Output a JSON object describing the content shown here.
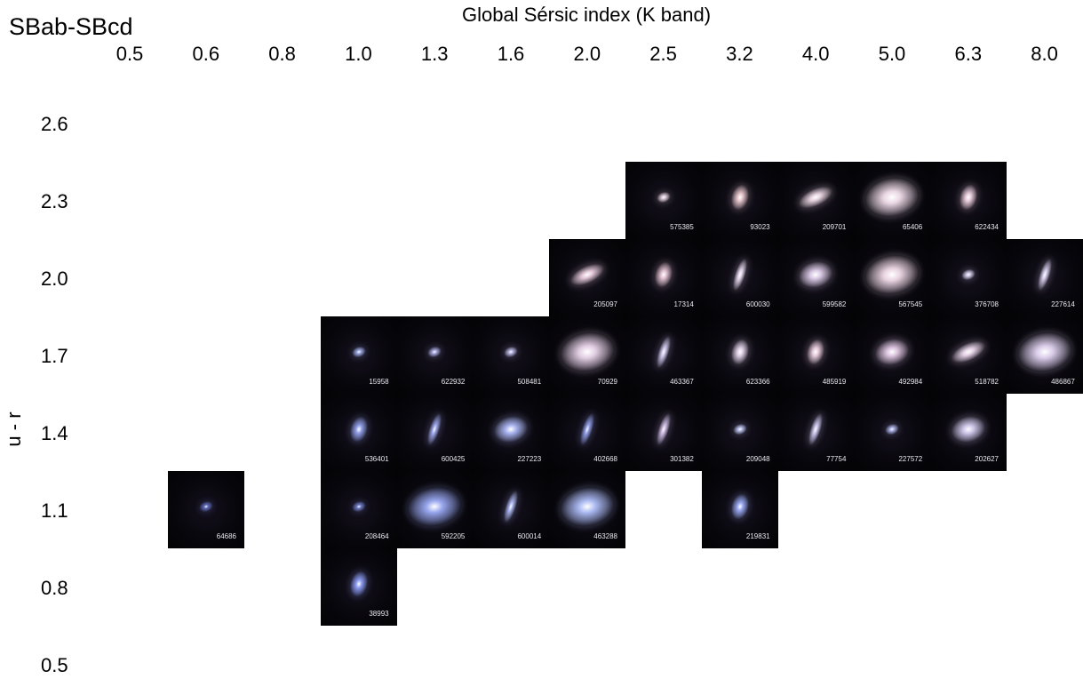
{
  "corner_title": "SBab-SBcd",
  "x_axis": {
    "title": "Global Sérsic index (K band)",
    "ticks": [
      "0.5",
      "0.6",
      "0.8",
      "1.0",
      "1.3",
      "1.6",
      "2.0",
      "2.5",
      "3.2",
      "4.0",
      "5.0",
      "6.3",
      "8.0"
    ]
  },
  "y_axis": {
    "title": "u - r",
    "ticks": [
      "2.6",
      "2.3",
      "2.0",
      "1.7",
      "1.4",
      "1.1",
      "0.8",
      "0.5"
    ]
  },
  "colors": {
    "background": "#ffffff",
    "cell_background": "#050508",
    "label_text": "#e8e8ef"
  },
  "galaxies": [
    {
      "id": "575385",
      "col": 7,
      "row": 1,
      "hue": "#d9c9d6",
      "shape": "compact"
    },
    {
      "id": "93023",
      "col": 8,
      "row": 1,
      "hue": "#e2c2c8",
      "shape": "oval"
    },
    {
      "id": "209701",
      "col": 9,
      "row": 1,
      "hue": "#e3d0dc",
      "shape": "tilted"
    },
    {
      "id": "65406",
      "col": 10,
      "row": 1,
      "hue": "#e9d6e3",
      "shape": "large"
    },
    {
      "id": "622434",
      "col": 11,
      "row": 1,
      "hue": "#e6c9d8",
      "shape": "oval"
    },
    {
      "id": "205097",
      "col": 6,
      "row": 2,
      "hue": "#e3c8d8",
      "shape": "tilted"
    },
    {
      "id": "17314",
      "col": 7,
      "row": 2,
      "hue": "#e0c0cf",
      "shape": "oval"
    },
    {
      "id": "600030",
      "col": 8,
      "row": 2,
      "hue": "#ddd0e6",
      "shape": "edge"
    },
    {
      "id": "599582",
      "col": 9,
      "row": 2,
      "hue": "#d9c8e4",
      "shape": "spiral"
    },
    {
      "id": "567545",
      "col": 10,
      "row": 2,
      "hue": "#e8d2e0",
      "shape": "large"
    },
    {
      "id": "376708",
      "col": 11,
      "row": 2,
      "hue": "#d0c8e6",
      "shape": "compact"
    },
    {
      "id": "227614",
      "col": 12,
      "row": 2,
      "hue": "#cfc5e4",
      "shape": "edge"
    },
    {
      "id": "15958",
      "col": 3,
      "row": 3,
      "hue": "#9aa6e0",
      "shape": "compact"
    },
    {
      "id": "622932",
      "col": 4,
      "row": 3,
      "hue": "#a5a7dc",
      "shape": "compact"
    },
    {
      "id": "508481",
      "col": 5,
      "row": 3,
      "hue": "#b3b0de",
      "shape": "compact"
    },
    {
      "id": "70929",
      "col": 6,
      "row": 3,
      "hue": "#e1cde2",
      "shape": "large"
    },
    {
      "id": "463367",
      "col": 7,
      "row": 3,
      "hue": "#c9c2e6",
      "shape": "edge"
    },
    {
      "id": "623366",
      "col": 8,
      "row": 3,
      "hue": "#dccde3",
      "shape": "oval"
    },
    {
      "id": "485919",
      "col": 9,
      "row": 3,
      "hue": "#e6cbdb",
      "shape": "oval"
    },
    {
      "id": "492984",
      "col": 10,
      "row": 3,
      "hue": "#dcc3de",
      "shape": "spiral"
    },
    {
      "id": "518782",
      "col": 11,
      "row": 3,
      "hue": "#e3d0e4",
      "shape": "tilted"
    },
    {
      "id": "486867",
      "col": 12,
      "row": 3,
      "hue": "#d8cbe8",
      "shape": "large"
    },
    {
      "id": "536401",
      "col": 3,
      "row": 4,
      "hue": "#8f9ee6",
      "shape": "oval"
    },
    {
      "id": "600425",
      "col": 4,
      "row": 4,
      "hue": "#9aa3e4",
      "shape": "edge"
    },
    {
      "id": "227223",
      "col": 5,
      "row": 4,
      "hue": "#a7b2ee",
      "shape": "spiral"
    },
    {
      "id": "402668",
      "col": 6,
      "row": 4,
      "hue": "#8e9ae0",
      "shape": "edge"
    },
    {
      "id": "301382",
      "col": 7,
      "row": 4,
      "hue": "#c7b6dc",
      "shape": "edge"
    },
    {
      "id": "209048",
      "col": 8,
      "row": 4,
      "hue": "#b6bde6",
      "shape": "compact"
    },
    {
      "id": "77754",
      "col": 9,
      "row": 4,
      "hue": "#c5bfe6",
      "shape": "edge"
    },
    {
      "id": "227572",
      "col": 10,
      "row": 4,
      "hue": "#a9b0e4",
      "shape": "compact"
    },
    {
      "id": "202627",
      "col": 11,
      "row": 4,
      "hue": "#cbc4e6",
      "shape": "spiral"
    },
    {
      "id": "64686",
      "col": 1,
      "row": 5,
      "hue": "#5d69b6",
      "shape": "compact"
    },
    {
      "id": "208464",
      "col": 3,
      "row": 5,
      "hue": "#6f7bc6",
      "shape": "compact"
    },
    {
      "id": "592205",
      "col": 4,
      "row": 5,
      "hue": "#95a4ec",
      "shape": "large"
    },
    {
      "id": "600014",
      "col": 5,
      "row": 5,
      "hue": "#a4aee6",
      "shape": "edge"
    },
    {
      "id": "463288",
      "col": 6,
      "row": 5,
      "hue": "#a9b8f0",
      "shape": "large"
    },
    {
      "id": "219831",
      "col": 8,
      "row": 5,
      "hue": "#96a6ee",
      "shape": "oval"
    },
    {
      "id": "38993",
      "col": 3,
      "row": 6,
      "hue": "#8a9af0",
      "shape": "oval"
    }
  ]
}
